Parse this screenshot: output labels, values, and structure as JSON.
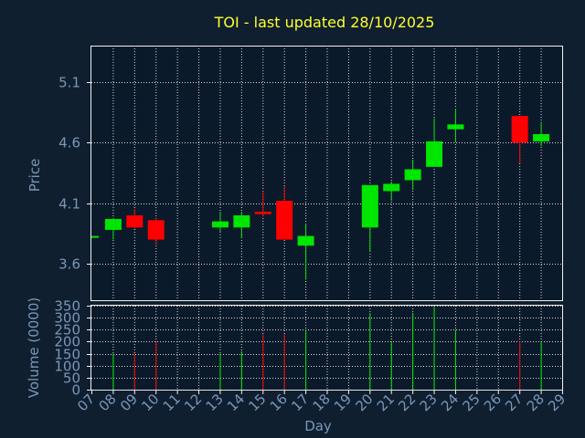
{
  "colors": {
    "background": "#0f1f2f",
    "plot_area": "#0b1a2a",
    "axes": "#f0f0f0",
    "grid": "#d8d8d8",
    "title": "#ffff33",
    "axis_labels": "#7a96b8",
    "tick_labels": "#7a96b8",
    "up": "#00e600",
    "down": "#ff0000"
  },
  "chart_data": [
    {
      "type": "candlestick",
      "title": "TOI - last updated 28/10/2025",
      "ylabel": "Price",
      "ylim": [
        3.3,
        5.4
      ],
      "yticks": [
        "3.6",
        "4.1",
        "4.6",
        "5.1"
      ],
      "grid": true,
      "x": [
        7,
        8,
        9,
        10,
        11,
        12,
        13,
        14,
        15,
        16,
        17,
        18,
        19,
        20,
        21,
        22,
        23,
        24,
        25,
        26,
        27,
        28
      ],
      "candles": [
        {
          "day": 7,
          "open": 3.83,
          "close": 3.83,
          "high": 3.83,
          "low": 3.83
        },
        {
          "day": 8,
          "open": 3.88,
          "close": 3.97,
          "high": 3.98,
          "low": 3.8
        },
        {
          "day": 9,
          "open": 4.0,
          "close": 3.9,
          "high": 4.05,
          "low": 3.89
        },
        {
          "day": 10,
          "open": 3.96,
          "close": 3.8,
          "high": 3.98,
          "low": 3.76
        },
        {
          "day": 13,
          "open": 3.9,
          "close": 3.95,
          "high": 4.03,
          "low": 3.86
        },
        {
          "day": 14,
          "open": 3.9,
          "close": 4.0,
          "high": 4.03,
          "low": 3.81
        },
        {
          "day": 15,
          "open": 4.03,
          "close": 4.01,
          "high": 4.2,
          "low": 3.99
        },
        {
          "day": 16,
          "open": 4.12,
          "close": 3.8,
          "high": 4.24,
          "low": 3.8
        },
        {
          "day": 17,
          "open": 3.75,
          "close": 3.83,
          "high": 3.93,
          "low": 3.47
        },
        {
          "day": 20,
          "open": 3.9,
          "close": 4.25,
          "high": 4.25,
          "low": 3.7
        },
        {
          "day": 21,
          "open": 4.2,
          "close": 4.26,
          "high": 4.28,
          "low": 4.12
        },
        {
          "day": 22,
          "open": 4.29,
          "close": 4.38,
          "high": 4.46,
          "low": 4.21
        },
        {
          "day": 23,
          "open": 4.4,
          "close": 4.61,
          "high": 4.8,
          "low": 4.4
        },
        {
          "day": 24,
          "open": 4.71,
          "close": 4.75,
          "high": 4.88,
          "low": 4.6
        },
        {
          "day": 27,
          "open": 4.82,
          "close": 4.6,
          "high": 4.82,
          "low": 4.43
        },
        {
          "day": 28,
          "open": 4.61,
          "close": 4.67,
          "high": 4.77,
          "low": 4.57
        }
      ]
    },
    {
      "type": "bar",
      "ylabel": "Volume (0000)",
      "xlabel": "Day",
      "ylim": [
        0,
        350
      ],
      "yticks": [
        "0",
        "50",
        "100",
        "150",
        "200",
        "250",
        "300",
        "350"
      ],
      "xticks": [
        "07",
        "08",
        "09",
        "10",
        "11",
        "12",
        "13",
        "14",
        "15",
        "16",
        "17",
        "18",
        "19",
        "20",
        "21",
        "22",
        "23",
        "24",
        "25",
        "26",
        "27",
        "28",
        "29"
      ],
      "grid": true,
      "bars": [
        {
          "day": 8,
          "value": 150,
          "direction": "up"
        },
        {
          "day": 9,
          "value": 150,
          "direction": "down"
        },
        {
          "day": 10,
          "value": 200,
          "direction": "down"
        },
        {
          "day": 13,
          "value": 150,
          "direction": "up"
        },
        {
          "day": 14,
          "value": 160,
          "direction": "up"
        },
        {
          "day": 15,
          "value": 230,
          "direction": "down"
        },
        {
          "day": 16,
          "value": 230,
          "direction": "down"
        },
        {
          "day": 17,
          "value": 250,
          "direction": "up"
        },
        {
          "day": 20,
          "value": 320,
          "direction": "up"
        },
        {
          "day": 21,
          "value": 200,
          "direction": "up"
        },
        {
          "day": 22,
          "value": 320,
          "direction": "up"
        },
        {
          "day": 23,
          "value": 345,
          "direction": "up"
        },
        {
          "day": 24,
          "value": 250,
          "direction": "up"
        },
        {
          "day": 27,
          "value": 200,
          "direction": "down"
        },
        {
          "day": 28,
          "value": 200,
          "direction": "up"
        }
      ]
    }
  ]
}
